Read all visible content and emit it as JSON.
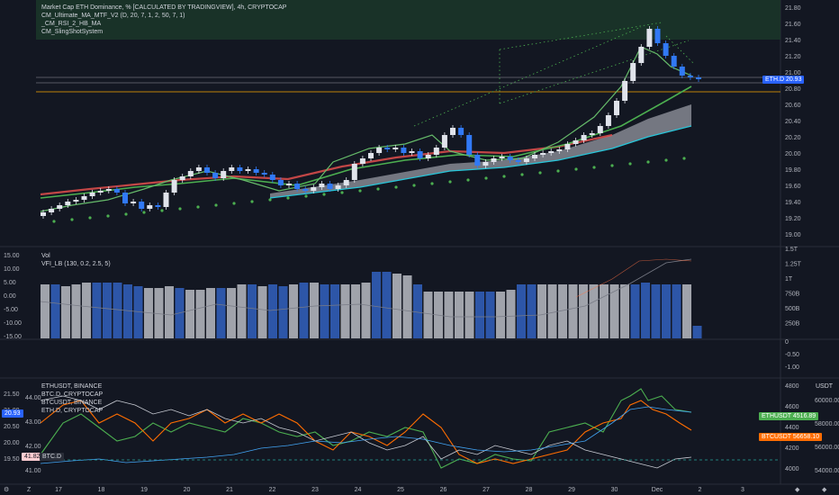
{
  "main": {
    "legend": [
      "Market Cap ETH Dominance, % [CALCULATED BY TRADINGVIEW], 4h, CRYPTOCAP",
      "CM_Ultimate_MA_MTF_V2 (D, 20, 7, 1, 2, 50, 7, 1)",
      "_CM_RSI_2_HB_MA",
      "CM_SlingShotSystem"
    ],
    "y_ticks": [
      "21.80",
      "21.60",
      "21.40",
      "21.20",
      "21.00",
      "20.80",
      "20.60",
      "20.40",
      "20.20",
      "20.00",
      "19.80",
      "19.60",
      "19.40",
      "19.20",
      "19.00"
    ],
    "price_tag": "ETH.D",
    "price_value": "20.93"
  },
  "volume": {
    "legend": [
      "Vol",
      "VFI_LB (130, 0.2, 2.5, 5)"
    ],
    "left_ticks": [
      "15.00",
      "10.00",
      "5.00",
      "0.00",
      "-5.00",
      "-10.00",
      "-15.00"
    ],
    "right_ticks": [
      "1.5T",
      "1.25T",
      "1T",
      "750B",
      "500B",
      "250B"
    ]
  },
  "blank_pane": {
    "right_ticks": [
      "0",
      "-0.50",
      "-1.00"
    ]
  },
  "compare": {
    "legend": [
      "ETHUSDT, BINANCE",
      "BTC.D, CRYPTOCAP",
      "BTCUSDT, BINANCE",
      "ETH.D, CRYPTOCAP"
    ],
    "left_ticks_a": [
      "21.50",
      "21.00",
      "20.50",
      "20.00",
      "19.50"
    ],
    "left_ticks_b": [
      "44.00",
      "43.00",
      "42.00",
      "41.00"
    ],
    "right_ticks_a": [
      "4800",
      "4600",
      "4400",
      "4200",
      "4000"
    ],
    "right_ticks_b": [
      "60000.00",
      "58000.00",
      "56000.00",
      "54000.00"
    ],
    "currency": "USDT",
    "ethusdt_tag": "ETHUSDT",
    "ethusdt_value": "4516.89",
    "btcusdt_tag": "BTCUSDT",
    "btcusdt_value": "56658.10",
    "ethd_left_value": "20.93",
    "btcd_left_value": "41.82",
    "btcd_tag": "BTC.D"
  },
  "time_axis": [
    "17",
    "18",
    "19",
    "20",
    "21",
    "22",
    "23",
    "24",
    "25",
    "26",
    "27",
    "28",
    "29",
    "30",
    "Dec",
    "2",
    "3"
  ],
  "colors": {
    "bg": "#131722",
    "up": "#e0e3eb",
    "down": "#3179f5",
    "ema_fast": "#4caf50",
    "ema_slow": "#ff7043",
    "band": "#787b86",
    "orange": "#ff6d00",
    "blue": "#2962ff",
    "grid": "#2a2e39"
  }
}
